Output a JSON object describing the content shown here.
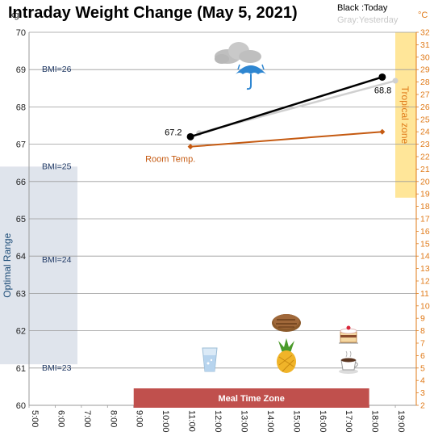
{
  "title": "Intraday Weight Change (May 5, 2021)",
  "legend": {
    "today": "Black :Today",
    "yesterday": "Gray:Yesterday"
  },
  "units": {
    "left": "kg",
    "right": "°C"
  },
  "colors": {
    "today": "#000000",
    "yesterday": "#d0d0d0",
    "room_temp": "#c55a11",
    "tropical_zone": "#ffe699",
    "optimal_range": "#dfe4ec",
    "meal_zone": "#c0504d",
    "right_axis": "#e07b1a"
  },
  "chart_data": {
    "type": "line",
    "x_axis": {
      "ticks": [
        "5:00",
        "6:00",
        "7:00",
        "8:00",
        "9:00",
        "10:00",
        "11:00",
        "12:00",
        "13:00",
        "14:00",
        "15:00",
        "16:00",
        "17:00",
        "18:00",
        "19:00"
      ],
      "range_hours": [
        5,
        19.8
      ]
    },
    "y_left": {
      "label": "kg",
      "range": [
        60,
        70
      ],
      "ticks": [
        60,
        61,
        62,
        63,
        64,
        65,
        66,
        67,
        68,
        69,
        70
      ]
    },
    "y_right": {
      "label": "°C",
      "range": [
        2,
        32
      ],
      "ticks": [
        2,
        3,
        4,
        5,
        6,
        7,
        8,
        9,
        10,
        11,
        12,
        13,
        14,
        15,
        16,
        17,
        18,
        19,
        20,
        21,
        22,
        23,
        24,
        25,
        26,
        27,
        28,
        29,
        30,
        31,
        32
      ]
    },
    "series": [
      {
        "key": "today",
        "axis": "left",
        "points": [
          [
            11.17,
            67.2
          ],
          [
            18.5,
            68.8
          ]
        ],
        "labels": [
          "67.2",
          "68.8"
        ]
      },
      {
        "key": "yesterday",
        "axis": "left",
        "points": [
          [
            11.5,
            67.3
          ],
          [
            19.0,
            68.7
          ]
        ]
      },
      {
        "name": "Room Temp.",
        "axis": "right",
        "points": [
          [
            11.17,
            22.8
          ],
          [
            18.5,
            24.0
          ]
        ]
      }
    ],
    "bmi_lines": [
      {
        "label": "BMI=26",
        "kg": 69.0
      },
      {
        "label": "BMI=25",
        "kg": 66.4
      },
      {
        "label": "BMI=24",
        "kg": 63.9
      },
      {
        "label": "BMI=23",
        "kg": 61.0
      }
    ],
    "optimal_range": {
      "label": "Optimal Range",
      "kg": [
        61.1,
        66.4
      ]
    },
    "tropical_zone": {
      "label": "Tropical zone",
      "celsius": [
        18.7,
        32
      ]
    },
    "meal_zone": {
      "label": "Meal Time Zone",
      "hours": [
        9.0,
        18.0
      ]
    }
  },
  "icons": {
    "weather": "rain-cloud-umbrella-icon",
    "meals": [
      "water-glass-icon",
      "pineapple-icon",
      "grilled-meat-icon",
      "cake-icon",
      "coffee-cup-icon"
    ]
  }
}
